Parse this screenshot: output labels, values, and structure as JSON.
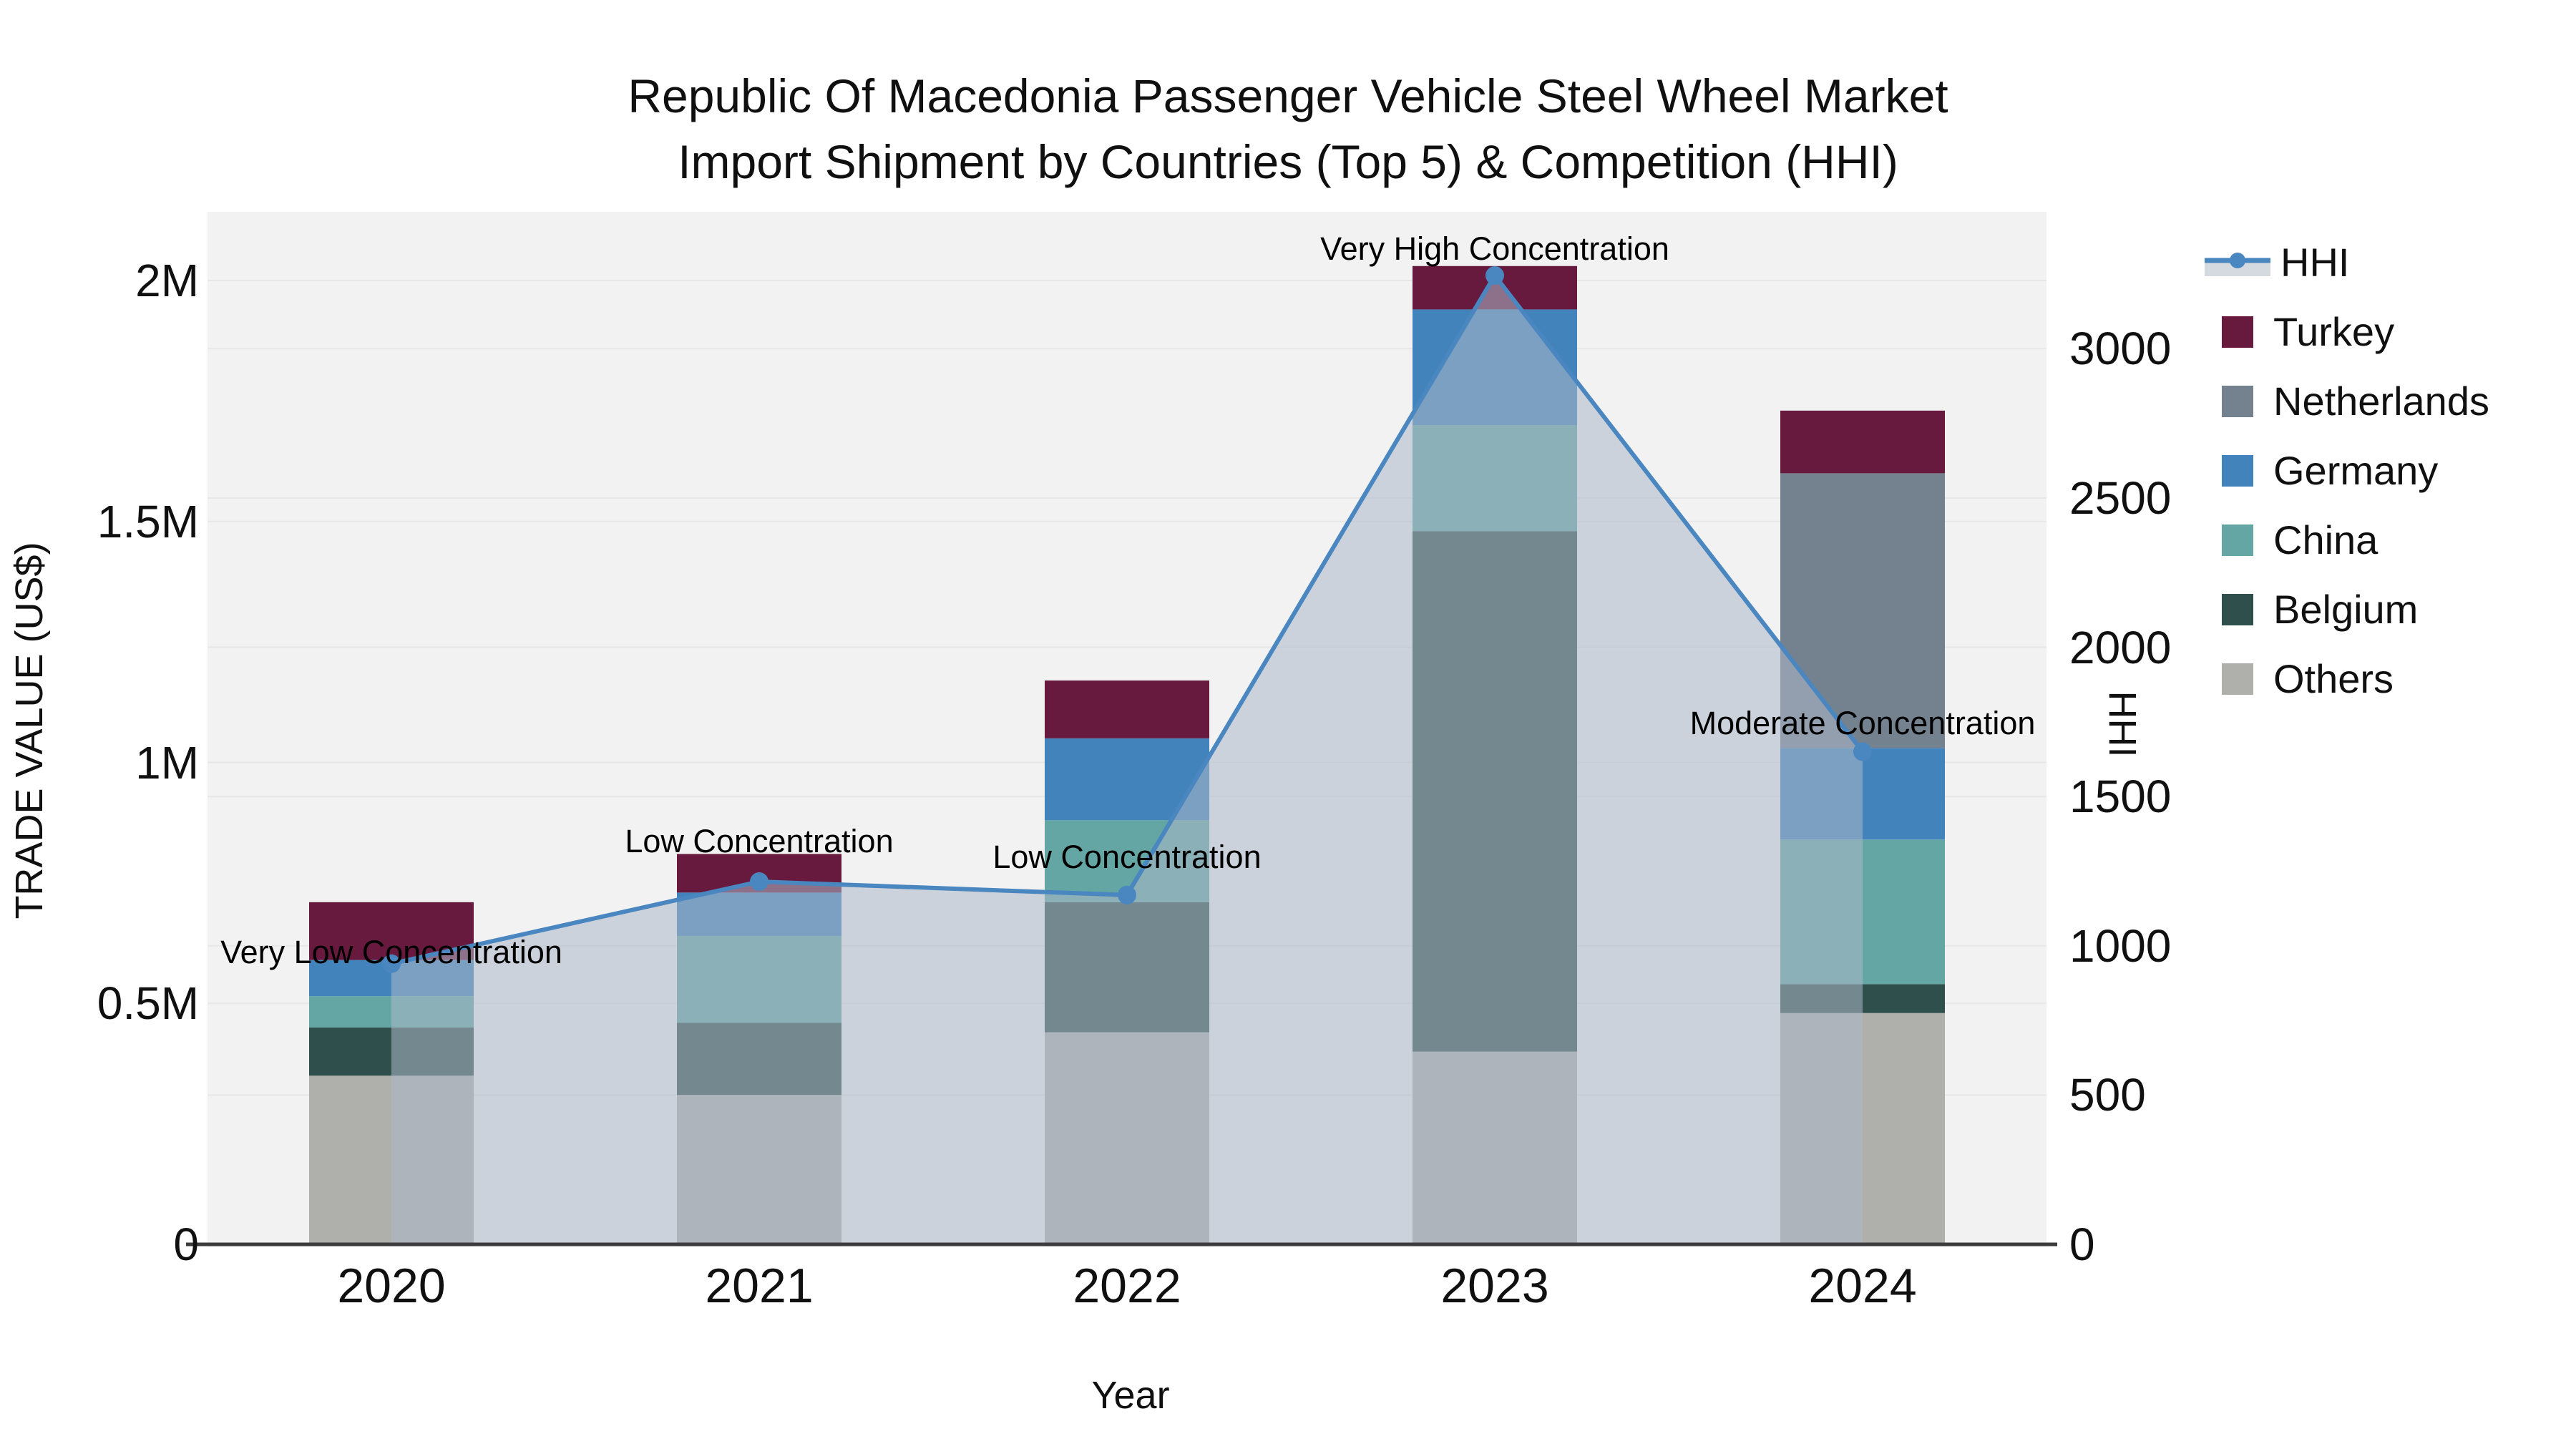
{
  "title": {
    "line1": "Republic Of Macedonia Passenger Vehicle Steel Wheel Market",
    "line2": "Import Shipment by Countries (Top 5) & Competition (HHI)"
  },
  "axes": {
    "x": {
      "title": "Year",
      "ticks": [
        "2020",
        "2021",
        "2022",
        "2023",
        "2024"
      ]
    },
    "y_left": {
      "title": "TRADE VALUE (US$)",
      "ticks": [
        {
          "label": "0",
          "value": 0
        },
        {
          "label": "0.5M",
          "value": 0.5
        },
        {
          "label": "1M",
          "value": 1
        },
        {
          "label": "1.5M",
          "value": 1.5
        },
        {
          "label": "2M",
          "value": 2
        }
      ]
    },
    "y_right": {
      "title": "HHI",
      "ticks": [
        {
          "label": "0",
          "value": 0
        },
        {
          "label": "500",
          "value": 500
        },
        {
          "label": "1000",
          "value": 1000
        },
        {
          "label": "1500",
          "value": 1500
        },
        {
          "label": "2000",
          "value": 2000
        },
        {
          "label": "2500",
          "value": 2500
        },
        {
          "label": "3000",
          "value": 3000
        }
      ]
    }
  },
  "legend": {
    "items": [
      {
        "label": "HHI",
        "type": "line"
      },
      {
        "label": "Turkey",
        "type": "square"
      },
      {
        "label": "Netherlands",
        "type": "square"
      },
      {
        "label": "Germany",
        "type": "square"
      },
      {
        "label": "China",
        "type": "square"
      },
      {
        "label": "Belgium",
        "type": "square"
      },
      {
        "label": "Others",
        "type": "square"
      }
    ]
  },
  "annotations": [
    {
      "text": "Very Low Concentration",
      "year_index": 0,
      "dy": -16
    },
    {
      "text": "Low Concentration",
      "year_index": 1,
      "dy": -56
    },
    {
      "text": "Low Concentration",
      "year_index": 2,
      "dy": -53
    },
    {
      "text": "Very High Concentration",
      "year_index": 3,
      "dy": -37
    },
    {
      "text": "Moderate Concentration",
      "year_index": 4,
      "dy": -40
    }
  ],
  "colors": {
    "plot_bg": "#F2F2F2",
    "grid": "#E7E7E7",
    "axis_line": "#3C3C3C",
    "hhi_line": "#4A86C0",
    "hhi_area": "rgba(173,184,200,0.55)",
    "legend_area_swatch": "#D5DAE1",
    "text": "#101010"
  },
  "chart_data": {
    "type": "bar",
    "subtype": "stacked-bars-with-line-overlay",
    "title": "Republic Of Macedonia Passenger Vehicle Steel Wheel Market Import Shipment by Countries (Top 5) & Competition (HHI)",
    "xlabel": "Year",
    "ylabel_left": "TRADE VALUE (US$)",
    "ylabel_right": "HHI",
    "unit": "million US$",
    "categories": [
      "2020",
      "2021",
      "2022",
      "2023",
      "2024"
    ],
    "stack_order_note": "series listed bottom-to-top of stack",
    "series": [
      {
        "name": "Others",
        "color": "#AFAFAB",
        "values": [
          0.35,
          0.31,
          0.44,
          0.4,
          0.48
        ]
      },
      {
        "name": "Belgium",
        "color": "#2E4F4B",
        "values": [
          0.1,
          0.15,
          0.27,
          1.08,
          0.06
        ]
      },
      {
        "name": "China",
        "color": "#63A6A4",
        "values": [
          0.065,
          0.18,
          0.17,
          0.22,
          0.3
        ]
      },
      {
        "name": "Germany",
        "color": "#4283BB",
        "values": [
          0.075,
          0.09,
          0.17,
          0.24,
          0.19
        ]
      },
      {
        "name": "Netherlands",
        "color": "#74828F",
        "values": [
          0,
          0,
          0,
          0,
          0.57
        ]
      },
      {
        "name": "Turkey",
        "color": "#671A3D",
        "values": [
          0.12,
          0.08,
          0.12,
          0.09,
          0.13
        ]
      }
    ],
    "line_series": {
      "name": "HHI",
      "values": [
        940,
        1215,
        1170,
        3245,
        1650
      ],
      "axis": "right"
    },
    "totals_musd": [
      0.71,
      0.81,
      1.17,
      2.03,
      1.73
    ],
    "ylim_left_musd": [
      0,
      2.14
    ],
    "ylim_right_hhi": [
      0,
      3460
    ],
    "grid": true,
    "legend_position": "right"
  }
}
